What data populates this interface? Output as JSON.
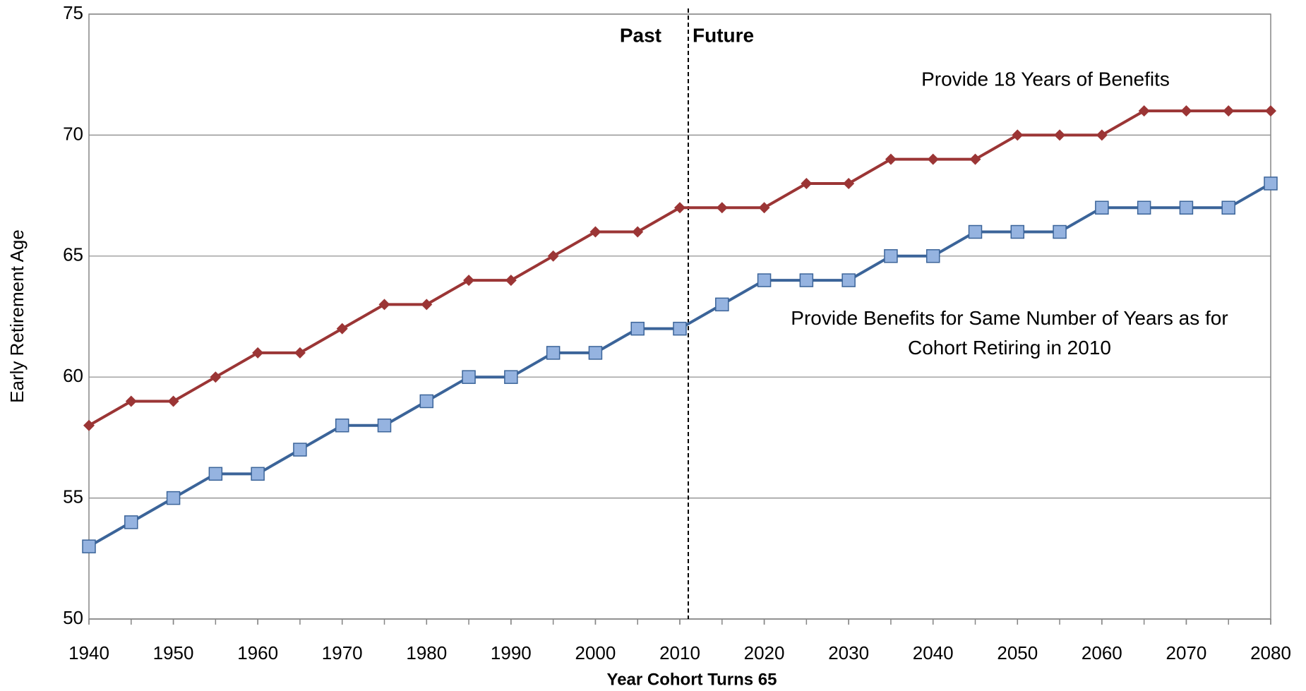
{
  "chart_data": {
    "type": "line",
    "xlabel": "Year Cohort Turns 65",
    "ylabel": "Early Retirement Age",
    "x": [
      1940,
      1945,
      1950,
      1955,
      1960,
      1965,
      1970,
      1975,
      1980,
      1985,
      1990,
      1995,
      2000,
      2005,
      2010,
      2015,
      2020,
      2025,
      2030,
      2035,
      2040,
      2045,
      2050,
      2055,
      2060,
      2065,
      2070,
      2075,
      2080
    ],
    "series": [
      {
        "name": "Provide 18 Years of Benefits",
        "color": "#9b3535",
        "marker": "diamond",
        "values": [
          58,
          59,
          59,
          60,
          61,
          61,
          62,
          63,
          63,
          64,
          64,
          65,
          66,
          66,
          67,
          67,
          67,
          68,
          68,
          69,
          69,
          69,
          70,
          70,
          70,
          71,
          71,
          71,
          71
        ]
      },
      {
        "name": "Provide Benefits for Same Number of Years as for Cohort Retiring in 2010",
        "color": "#3b6499",
        "marker": "square",
        "marker_fill": "#95b3e0",
        "values": [
          53,
          54,
          55,
          56,
          56,
          57,
          58,
          58,
          59,
          60,
          60,
          61,
          61,
          62,
          62,
          63,
          64,
          64,
          64,
          65,
          65,
          66,
          66,
          66,
          67,
          67,
          67,
          67,
          68
        ]
      }
    ],
    "annotations": {
      "past": "Past",
      "future": "Future",
      "divider_x": 2011
    },
    "xlim": [
      1940,
      2080
    ],
    "xticks": [
      1940,
      1950,
      1960,
      1970,
      1980,
      1990,
      2000,
      2010,
      2020,
      2030,
      2040,
      2050,
      2060,
      2070,
      2080
    ],
    "ylim": [
      50,
      75
    ],
    "yticks": [
      50,
      55,
      60,
      65,
      70,
      75
    ],
    "grid": true
  }
}
